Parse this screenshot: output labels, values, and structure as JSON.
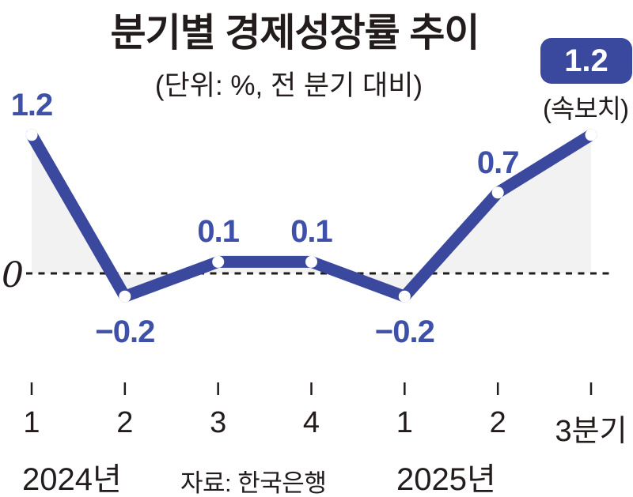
{
  "title": "분기별 경제성장률 추이",
  "subtitle": "(단위: %, 전 분기 대비)",
  "source_label": "자료: 한국은행",
  "zero_label": "0",
  "highlight_badge": {
    "value": "1.2",
    "note": "(속보치)"
  },
  "colors": {
    "accent_blue": "#3a489e",
    "label_blue": "#3e50a8",
    "area_fill": "#f2f2f3",
    "axis_dark": "#231c1c",
    "marker_fill": "#ffffff"
  },
  "chart_data": {
    "type": "line",
    "categories": [
      "1",
      "2",
      "3",
      "4",
      "1",
      "2",
      "3분기"
    ],
    "values": [
      1.2,
      -0.2,
      0.1,
      0.1,
      -0.2,
      0.7,
      1.2
    ],
    "value_labels": [
      "1.2",
      "−0.2",
      "0.1",
      "0.1",
      "−0.2",
      "0.7",
      "1.2"
    ],
    "title": "분기별 경제성장률 추이",
    "unit_note": "(단위: %, 전 분기 대비)",
    "xlabel": "",
    "ylabel": "",
    "ylim": [
      -0.45,
      1.45
    ],
    "baseline": 0,
    "grid": "dashed zero line only",
    "legend": "none",
    "area_fill_between_line_and_zero": true,
    "year_groups": [
      {
        "label": "2024년",
        "quarters": [
          1,
          2,
          3,
          4
        ]
      },
      {
        "label": "2025년",
        "quarters": [
          1,
          2,
          3
        ]
      }
    ],
    "last_point_annotation": "(속보치)",
    "last_point_style": "value shown in rounded blue badge"
  }
}
